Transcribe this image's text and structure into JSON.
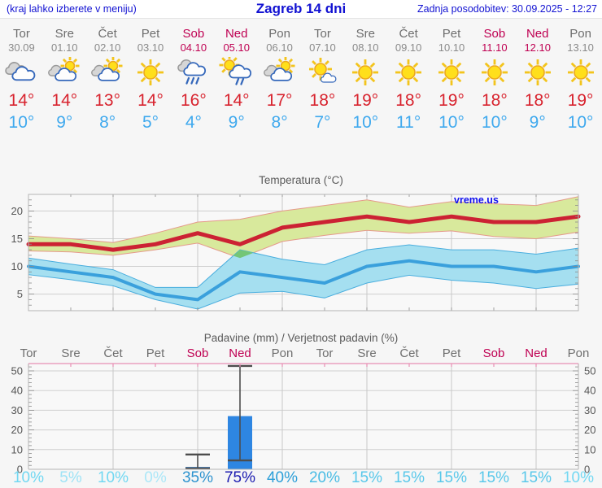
{
  "header": {
    "hint": "(kraj lahko izberete v meniju)",
    "title": "Zagreb 14 dni",
    "updated": "Zadnja posodobitev: 30.09.2025 - 12:27"
  },
  "days": [
    {
      "name": "Tor",
      "date": "30.09",
      "weekend": false,
      "icon": "cloudy",
      "tmax": "14°",
      "tmin": "10°"
    },
    {
      "name": "Sre",
      "date": "01.10",
      "weekend": false,
      "icon": "partly-cloudy",
      "tmax": "14°",
      "tmin": "9°"
    },
    {
      "name": "Čet",
      "date": "02.10",
      "weekend": false,
      "icon": "partly-cloudy",
      "tmax": "13°",
      "tmin": "8°"
    },
    {
      "name": "Pet",
      "date": "03.10",
      "weekend": false,
      "icon": "sunny",
      "tmax": "14°",
      "tmin": "5°"
    },
    {
      "name": "Sob",
      "date": "04.10",
      "weekend": true,
      "icon": "rain",
      "tmax": "16°",
      "tmin": "4°"
    },
    {
      "name": "Ned",
      "date": "05.10",
      "weekend": true,
      "icon": "sun-rain",
      "tmax": "14°",
      "tmin": "9°"
    },
    {
      "name": "Pon",
      "date": "06.10",
      "weekend": false,
      "icon": "partly-cloudy",
      "tmax": "17°",
      "tmin": "8°"
    },
    {
      "name": "Tor",
      "date": "07.10",
      "weekend": false,
      "icon": "mostly-sunny",
      "tmax": "18°",
      "tmin": "7°"
    },
    {
      "name": "Sre",
      "date": "08.10",
      "weekend": false,
      "icon": "sunny",
      "tmax": "19°",
      "tmin": "10°"
    },
    {
      "name": "Čet",
      "date": "09.10",
      "weekend": false,
      "icon": "sunny",
      "tmax": "18°",
      "tmin": "11°"
    },
    {
      "name": "Pet",
      "date": "10.10",
      "weekend": false,
      "icon": "sunny",
      "tmax": "19°",
      "tmin": "10°"
    },
    {
      "name": "Sob",
      "date": "11.10",
      "weekend": true,
      "icon": "sunny",
      "tmax": "18°",
      "tmin": "10°"
    },
    {
      "name": "Ned",
      "date": "12.10",
      "weekend": true,
      "icon": "sunny",
      "tmax": "18°",
      "tmin": "9°"
    },
    {
      "name": "Pon",
      "date": "13.10",
      "weekend": false,
      "icon": "sunny",
      "tmax": "19°",
      "tmin": "10°"
    }
  ],
  "chart_data": [
    {
      "type": "line",
      "title": "Temperatura (°C)",
      "watermark": "vreme.us",
      "categories": [
        "Tor 30.09",
        "Sre 01.10",
        "Čet 02.10",
        "Pet 03.10",
        "Sob 04.10",
        "Ned 05.10",
        "Pon 06.10",
        "Tor 07.10",
        "Sre 08.10",
        "Čet 09.10",
        "Pet 10.10",
        "Sob 11.10",
        "Ned 12.10",
        "Pon 13.10"
      ],
      "ylim": [
        2,
        23
      ],
      "yticks": [
        5,
        10,
        15,
        20
      ],
      "grid": true,
      "series": [
        {
          "name": "tmax",
          "color": "#cc2233",
          "values": [
            14,
            14,
            13,
            14,
            16,
            14,
            17,
            18,
            19,
            18,
            19,
            18,
            18,
            19
          ]
        },
        {
          "name": "tmax_range_hi",
          "values": [
            15.5,
            15,
            14.3,
            16,
            18,
            18.5,
            20,
            21,
            22,
            20.7,
            21.7,
            21.3,
            21,
            22.6
          ]
        },
        {
          "name": "tmax_range_lo",
          "values": [
            12.8,
            12.6,
            12,
            13,
            14.2,
            11.5,
            14.5,
            15.6,
            16.5,
            16,
            16.4,
            15.4,
            15,
            16.2
          ]
        },
        {
          "name": "tmin",
          "color": "#3aa0dc",
          "values": [
            10,
            9,
            8,
            5,
            4,
            9,
            8,
            7,
            10,
            11,
            10,
            10,
            9,
            10
          ]
        },
        {
          "name": "tmin_range_hi",
          "values": [
            11.5,
            10.4,
            9.4,
            6.2,
            6.2,
            13,
            11.3,
            10.3,
            13,
            13.9,
            13,
            13,
            12.2,
            13.3
          ]
        },
        {
          "name": "tmin_range_lo",
          "values": [
            8.5,
            7.6,
            6.5,
            4,
            2.3,
            5.2,
            5.5,
            4.3,
            7,
            8.4,
            7.5,
            7,
            6,
            6.8
          ]
        }
      ],
      "band_colors": {
        "max": "#d8e99c",
        "max_edge": "#e59a8b",
        "min": "#a5dff0",
        "min_edge": "#4aaede",
        "overlap": "#74c677"
      }
    },
    {
      "type": "bar",
      "title": "Padavine (mm) / Verjetnost padavin (%)",
      "categories": [
        "Tor",
        "Sre",
        "Čet",
        "Pet",
        "Sob",
        "Ned",
        "Pon",
        "Tor",
        "Sre",
        "Čet",
        "Pet",
        "Sob",
        "Ned",
        "Pon"
      ],
      "values": [
        0,
        0,
        0,
        0,
        1.2,
        27,
        0,
        0,
        0,
        0,
        0,
        0,
        0,
        0
      ],
      "whisker_lo": [
        null,
        null,
        null,
        null,
        0.5,
        4.5,
        null,
        null,
        null,
        null,
        null,
        null,
        null,
        null
      ],
      "whisker_hi": [
        null,
        null,
        null,
        null,
        7.5,
        52.5,
        null,
        null,
        null,
        null,
        null,
        null,
        null,
        null
      ],
      "probabilities": [
        "10%",
        "5%",
        "10%",
        "0%",
        "35%",
        "75%",
        "40%",
        "20%",
        "15%",
        "15%",
        "15%",
        "15%",
        "15%",
        "10%"
      ],
      "prob_colors": [
        "#72d8f2",
        "#9fe3f6",
        "#72d8f2",
        "#abe7f8",
        "#2d93cf",
        "#1c1cb0",
        "#2d9fd8",
        "#49bce4",
        "#59c8ea",
        "#59c8ea",
        "#59c8ea",
        "#59c8ea",
        "#59c8ea",
        "#72d8f2"
      ],
      "ylim": [
        0,
        53.7
      ],
      "yticks": [
        0,
        10,
        20,
        30,
        40,
        50
      ],
      "grid": true,
      "bar_color": "#2e86e2",
      "whisker_color": "#4d4d4d"
    }
  ],
  "colors": {
    "header_text": "#1212d2",
    "weekend": "#bf0052",
    "weekday": "#6e6e6e",
    "tmax": "#d8232e",
    "tmin": "#3fa9ee",
    "precip_bar": "#2e86e2",
    "top_axis_pink": "#e88fb4"
  }
}
